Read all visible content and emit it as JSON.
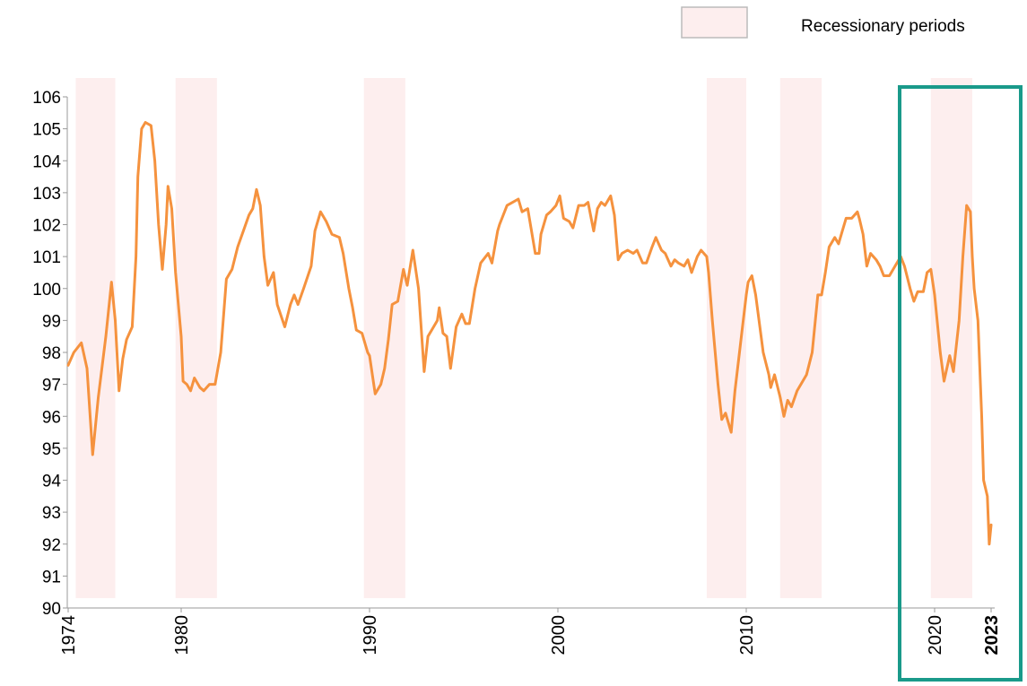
{
  "chart_data": {
    "type": "line",
    "color": "#f5923e",
    "x": [
      1974.0,
      1974.3,
      1974.7,
      1975.0,
      1975.3,
      1975.6,
      1976.0,
      1976.3,
      1976.5,
      1976.7,
      1976.9,
      1977.1,
      1977.4,
      1977.6,
      1977.7,
      1977.9,
      1978.1,
      1978.4,
      1978.6,
      1978.8,
      1979.0,
      1979.2,
      1979.3,
      1979.5,
      1979.7,
      1980.0,
      1980.1,
      1980.3,
      1980.5,
      1980.7,
      1981.0,
      1981.2,
      1981.5,
      1981.8,
      1982.1,
      1982.4,
      1982.7,
      1983.0,
      1983.3,
      1983.6,
      1983.8,
      1984.0,
      1984.2,
      1984.4,
      1984.6,
      1984.9,
      1985.1,
      1985.5,
      1985.8,
      1986.0,
      1986.2,
      1986.5,
      1986.9,
      1987.1,
      1987.4,
      1987.7,
      1988.0,
      1988.4,
      1988.6,
      1988.9,
      1989.1,
      1989.3,
      1989.6,
      1989.9,
      1990.0,
      1990.3,
      1990.6,
      1990.8,
      1991.0,
      1991.2,
      1991.5,
      1991.8,
      1992.0,
      1992.3,
      1992.6,
      1992.9,
      1993.1,
      1993.3,
      1993.6,
      1993.7,
      1993.9,
      1994.1,
      1994.3,
      1994.6,
      1994.9,
      1995.1,
      1995.3,
      1995.6,
      1995.9,
      1996.3,
      1996.5,
      1996.8,
      1996.9,
      1997.3,
      1997.6,
      1997.9,
      1998.1,
      1998.4,
      1998.8,
      1999.0,
      1999.1,
      1999.4,
      1999.6,
      1999.9,
      2000.1,
      2000.3,
      2000.6,
      2000.8,
      2001.1,
      2001.4,
      2001.6,
      2001.9,
      2002.1,
      2002.3,
      2002.5,
      2002.8,
      2003.0,
      2003.2,
      2003.4,
      2003.7,
      2004.0,
      2004.2,
      2004.5,
      2004.7,
      2005.0,
      2005.2,
      2005.5,
      2005.7,
      2006.0,
      2006.2,
      2006.4,
      2006.7,
      2006.9,
      2007.1,
      2007.4,
      2007.6,
      2007.9,
      2008.0,
      2008.2,
      2008.5,
      2008.7,
      2008.9,
      2009.2,
      2009.4,
      2009.7,
      2010.0,
      2010.1,
      2010.3,
      2010.5,
      2010.7,
      2010.9,
      2011.2,
      2011.3,
      2011.5,
      2011.8,
      2012.0,
      2012.2,
      2012.4,
      2012.7,
      2012.9,
      2013.2,
      2013.5,
      2013.8,
      2014.0,
      2014.2,
      2014.4,
      2014.7,
      2014.9,
      2015.1,
      2015.3,
      2015.6,
      2015.9,
      2016.0,
      2016.2,
      2016.4,
      2016.6,
      2016.9,
      2017.1,
      2017.3,
      2017.6,
      2017.9,
      2018.2,
      2018.4,
      2018.7,
      2018.9,
      2019.1,
      2019.4,
      2019.6,
      2019.8,
      2020.0,
      2020.3,
      2020.5,
      2020.8,
      2021.0,
      2021.3,
      2021.5,
      2021.7,
      2021.9,
      2022.0,
      2022.1,
      2022.3,
      2022.5,
      2022.6,
      2022.8,
      2022.9,
      2023.0
    ],
    "values": [
      97.6,
      98.0,
      98.3,
      97.5,
      94.8,
      96.6,
      98.5,
      100.2,
      99.0,
      96.8,
      97.8,
      98.4,
      98.8,
      101.0,
      103.5,
      105.0,
      105.2,
      105.1,
      104.0,
      102.0,
      100.6,
      102.0,
      103.2,
      102.5,
      100.5,
      98.5,
      97.1,
      97.0,
      96.8,
      97.2,
      96.9,
      96.8,
      97.0,
      97.0,
      98.0,
      100.3,
      100.6,
      101.3,
      101.8,
      102.3,
      102.5,
      103.1,
      102.6,
      101.0,
      100.1,
      100.5,
      99.5,
      98.8,
      99.5,
      99.8,
      99.5,
      100.0,
      100.7,
      101.8,
      102.4,
      102.1,
      101.7,
      101.6,
      101.1,
      100.0,
      99.4,
      98.7,
      98.6,
      98.0,
      97.9,
      96.7,
      97.0,
      97.5,
      98.4,
      99.5,
      99.6,
      100.6,
      100.1,
      101.2,
      100.0,
      97.4,
      98.5,
      98.7,
      99.0,
      99.4,
      98.6,
      98.5,
      97.5,
      98.8,
      99.2,
      98.9,
      98.9,
      100.0,
      100.8,
      101.1,
      100.8,
      101.8,
      102.0,
      102.6,
      102.7,
      102.8,
      102.4,
      102.5,
      101.1,
      101.1,
      101.7,
      102.3,
      102.4,
      102.6,
      102.9,
      102.2,
      102.1,
      101.9,
      102.6,
      102.6,
      102.7,
      101.8,
      102.5,
      102.7,
      102.6,
      102.9,
      102.3,
      100.9,
      101.1,
      101.2,
      101.1,
      101.2,
      100.8,
      100.8,
      101.3,
      101.6,
      101.2,
      101.1,
      100.7,
      100.9,
      100.8,
      100.7,
      100.9,
      100.5,
      101.0,
      101.2,
      101.0,
      100.5,
      99.0,
      97.0,
      95.9,
      96.1,
      95.5,
      96.8,
      98.3,
      99.8,
      100.2,
      100.4,
      99.8,
      98.9,
      98.0,
      97.3,
      96.9,
      97.3,
      96.6,
      96.0,
      96.5,
      96.3,
      96.8,
      97.0,
      97.3,
      98.0,
      99.8,
      99.8,
      100.5,
      101.3,
      101.6,
      101.4,
      101.8,
      102.2,
      102.2,
      102.4,
      102.2,
      101.7,
      100.7,
      101.1,
      100.9,
      100.7,
      100.4,
      100.4,
      100.7,
      101.0,
      100.7,
      100.0,
      99.6,
      99.9,
      99.9,
      100.5,
      100.6,
      99.8,
      98.0,
      97.1,
      97.9,
      97.4,
      99.0,
      101.0,
      102.6,
      102.4,
      101.0,
      100.0,
      99.0,
      96.0,
      94.0,
      93.5,
      92.0,
      92.6
    ],
    "xlim": [
      1974,
      2023
    ],
    "xticks": [
      1974,
      1980,
      1990,
      2000,
      2010,
      2020,
      2023
    ],
    "ylim": [
      90,
      106
    ],
    "yticks": [
      90,
      91,
      92,
      93,
      94,
      95,
      96,
      97,
      98,
      99,
      100,
      101,
      102,
      103,
      104,
      105,
      106
    ],
    "shaded_regions": {
      "label": "Recessionary periods",
      "color": "#fdeeee",
      "ranges": [
        [
          1974.4,
          1976.5
        ],
        [
          1979.7,
          1981.9
        ],
        [
          1989.7,
          1991.9
        ],
        [
          2007.9,
          2010.0
        ],
        [
          2011.8,
          2014.0
        ],
        [
          2019.8,
          2022.0
        ]
      ]
    }
  }
}
